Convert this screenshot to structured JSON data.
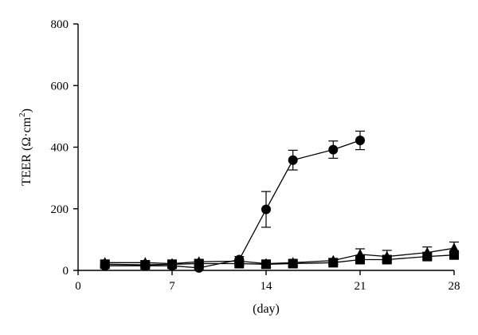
{
  "chart_data": {
    "type": "line",
    "title": "",
    "xlabel": "(day)",
    "ylabel_main": "TEER (Ω·cm",
    "ylabel_sup": "2",
    "ylabel_close": ")",
    "xlim": [
      0,
      28
    ],
    "ylim": [
      0,
      800
    ],
    "xticks": [
      0,
      7,
      14,
      21,
      28
    ],
    "yticks": [
      0,
      200,
      400,
      600,
      800
    ],
    "grid": false,
    "legend": "none",
    "series": [
      {
        "marker": "circle",
        "x": [
          2,
          5,
          7,
          9,
          12,
          14,
          16,
          19,
          21
        ],
        "y": [
          15,
          15,
          15,
          8,
          35,
          198,
          358,
          392,
          422
        ],
        "err": [
          5,
          5,
          5,
          4,
          10,
          58,
          32,
          28,
          30
        ]
      },
      {
        "marker": "triangle",
        "x": [
          2,
          5,
          7,
          9,
          12,
          14,
          16,
          19,
          21,
          23,
          26,
          28
        ],
        "y": [
          25,
          25,
          22,
          28,
          30,
          22,
          25,
          32,
          52,
          45,
          58,
          72
        ],
        "err": [
          5,
          5,
          5,
          5,
          6,
          5,
          5,
          6,
          18,
          20,
          18,
          20
        ]
      },
      {
        "marker": "square",
        "x": [
          2,
          5,
          7,
          9,
          12,
          14,
          16,
          19,
          21,
          23,
          26,
          28
        ],
        "y": [
          20,
          18,
          20,
          22,
          22,
          20,
          22,
          25,
          35,
          35,
          45,
          50
        ],
        "err": [
          4,
          4,
          4,
          4,
          5,
          4,
          4,
          5,
          8,
          8,
          10,
          12
        ]
      }
    ]
  }
}
